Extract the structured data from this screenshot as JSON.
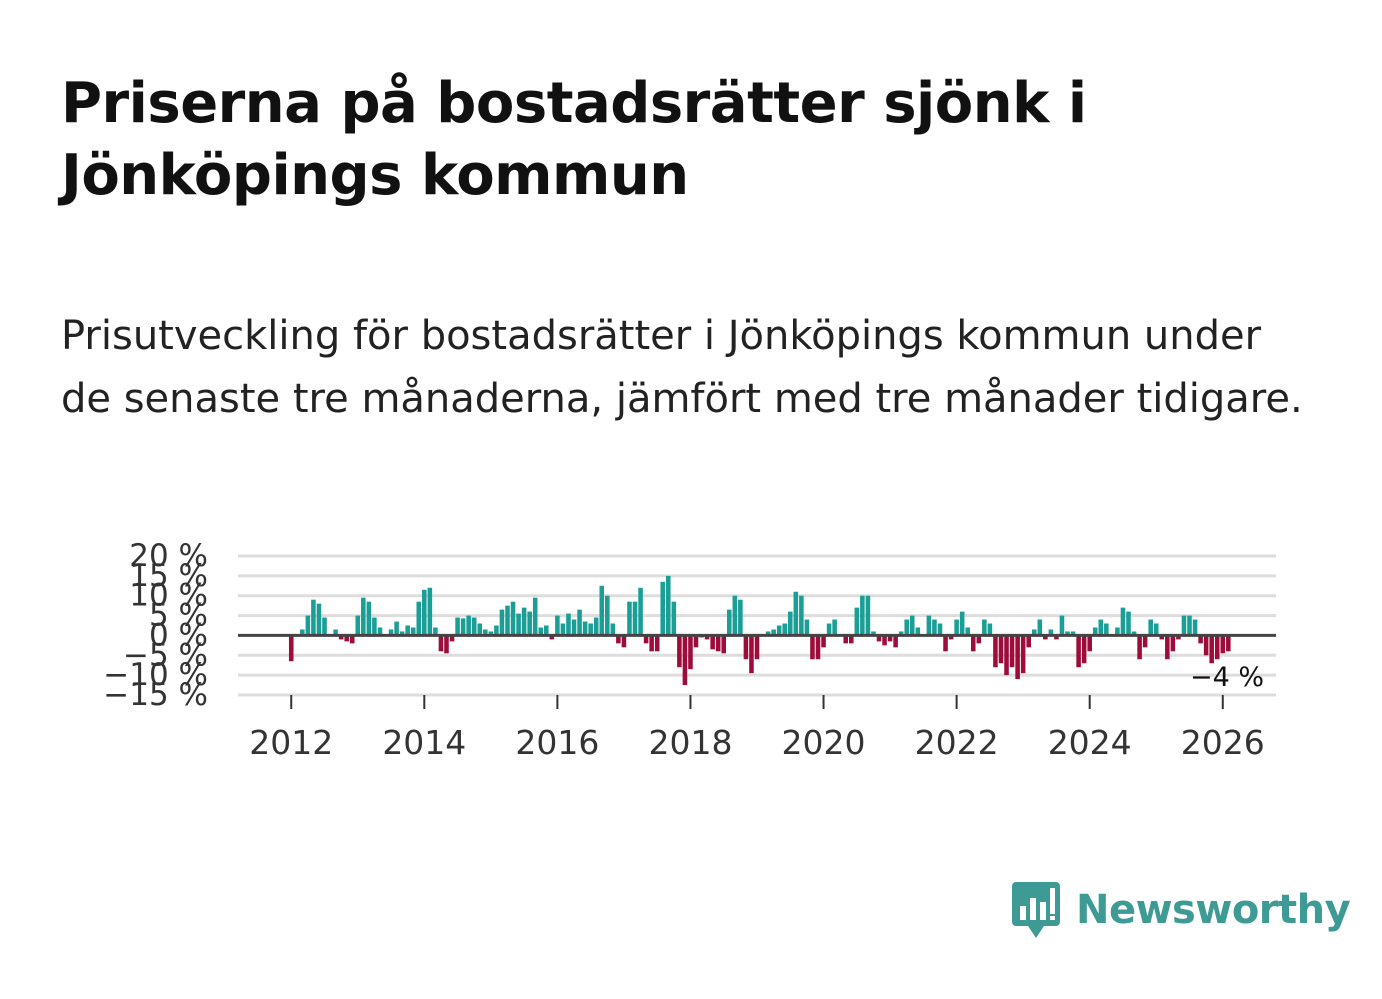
{
  "title": "Priserna på bostadsrätter sjönk i Jönköpings kommun",
  "subtitle": "Prisutveckling för bostadsrätter i Jönköpings kommun under de senaste tre månaderna, jämfört med tre månader tidigare.",
  "colors": {
    "positive": "#1a9e96",
    "negative": "#9e0c3c",
    "grid": "#dddddd",
    "zero": "#444444",
    "brand": "#3d9a94"
  },
  "logo": {
    "text": "Newsworthy",
    "icon": "newsworthy-chart-icon"
  },
  "chart_data": {
    "type": "bar",
    "title": "",
    "xlabel": "",
    "ylabel": "",
    "ylim": [
      -15,
      20
    ],
    "xlim": [
      2011.2,
      2026.8
    ],
    "y_ticks": [
      20,
      15,
      10,
      5,
      0,
      -5,
      -10,
      -15
    ],
    "y_tick_labels": [
      "20 %",
      "15 %",
      "10 %",
      "5 %",
      "0 %",
      "−5 %",
      "−10 %",
      "−15 %"
    ],
    "x_ticks": [
      2012,
      2014,
      2016,
      2018,
      2020,
      2022,
      2024,
      2026
    ],
    "x_tick_labels": [
      "2012",
      "2014",
      "2016",
      "2018",
      "2020",
      "2022",
      "2024",
      "2026"
    ],
    "grid": true,
    "last_label": "−4 %",
    "start": 2012,
    "values": [
      -6.5,
      0,
      1.5,
      5,
      9,
      8,
      4.5,
      0,
      1.5,
      -1,
      -1.5,
      -2,
      5,
      9.5,
      8.5,
      4.5,
      2,
      0,
      1.5,
      3.5,
      1,
      2.5,
      2,
      8.5,
      11.5,
      12,
      2,
      -4,
      -4.5,
      -1.5,
      4.5,
      4.3,
      5,
      4.5,
      3,
      1.5,
      1,
      2.5,
      6.5,
      7.5,
      8.5,
      5.5,
      7,
      6,
      9.5,
      2,
      2.5,
      -1,
      5,
      3,
      5.5,
      4,
      6.5,
      3.5,
      3,
      4.5,
      12.5,
      10,
      3,
      -2,
      -3,
      8.5,
      8.5,
      12,
      -2,
      -4,
      -4,
      13.5,
      15,
      8.5,
      -8,
      -12.5,
      -8.5,
      -3,
      -0.5,
      -1,
      -3.5,
      -4,
      -4.5,
      6.5,
      10,
      9,
      -6,
      -9.5,
      -6,
      0,
      1,
      1.5,
      2.5,
      3,
      6,
      11,
      10,
      4,
      -6,
      -6,
      -3,
      3,
      4,
      0,
      -2,
      -2,
      7,
      10,
      10,
      1,
      -1.5,
      -2.5,
      -1.5,
      -3,
      1,
      4,
      5,
      2,
      0,
      5,
      4,
      3,
      -4,
      -1,
      4,
      6,
      2,
      -4,
      -2,
      4,
      3,
      -8,
      -7,
      -10,
      -8,
      -11,
      -9.5,
      -3,
      1.5,
      4,
      -1,
      1.5,
      -1,
      5,
      1,
      1,
      -8,
      -7,
      -4,
      2,
      4,
      3,
      0,
      2,
      7,
      6,
      1,
      -6,
      -3,
      4,
      3,
      -1,
      -6,
      -4,
      -1,
      5,
      5,
      4,
      -2,
      -5,
      -7,
      -6,
      -4.5,
      -4
    ]
  }
}
